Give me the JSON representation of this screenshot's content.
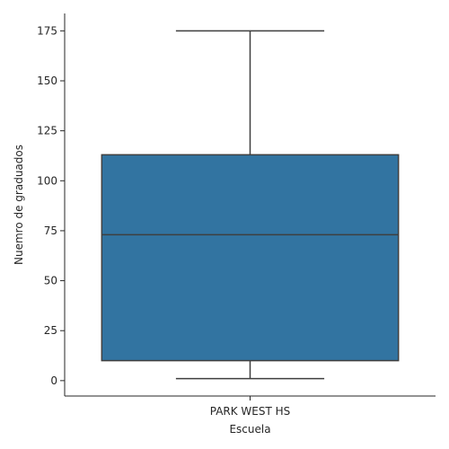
{
  "chart_data": {
    "type": "box",
    "xlabel": "Escuela",
    "ylabel": "Nuemro de graduados",
    "categories": [
      "PARK WEST HS"
    ],
    "boxes": [
      {
        "category": "PARK WEST HS",
        "whisker_low": 1,
        "q1": 10,
        "median": 73,
        "q3": 113,
        "whisker_high": 175
      }
    ],
    "ylim": [
      -7.7,
      183.7
    ],
    "yticks": [
      0,
      25,
      50,
      75,
      100,
      125,
      150,
      175
    ],
    "grid": false,
    "colors": {
      "box_fill": "#3274a1",
      "line": "#3f3f3f",
      "axis": "#262626"
    }
  }
}
